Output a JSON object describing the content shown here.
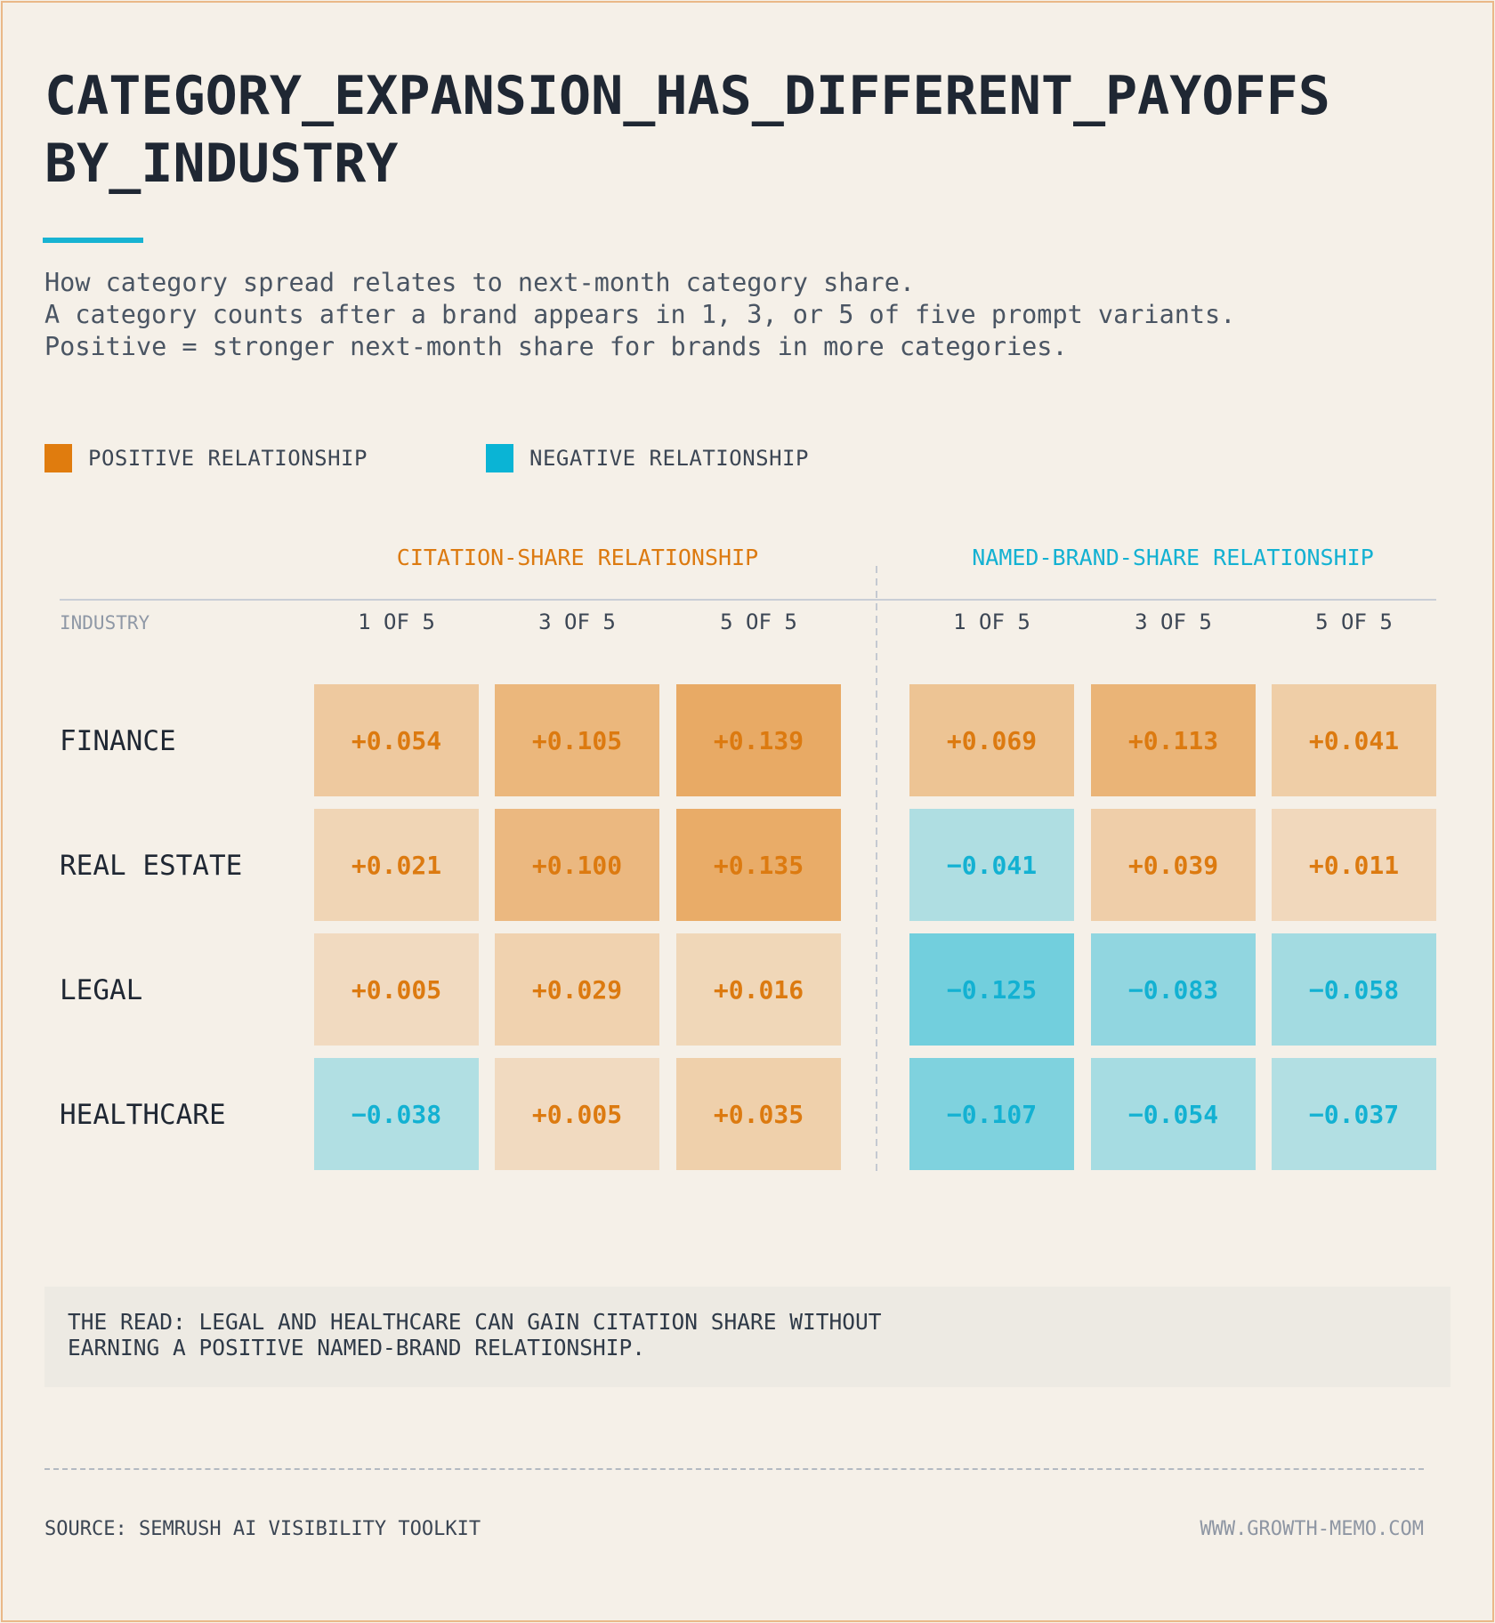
{
  "title_line1": "CATEGORY_EXPANSION_HAS_DIFFERENT_PAYOFFS",
  "title_line2": "BY_INDUSTRY",
  "subtitle": [
    "How category spread relates to next-month category share.",
    "A category counts after a brand appears in 1, 3, or 5 of five prompt variants.",
    "Positive = stronger next-month share for brands in more categories."
  ],
  "legend": {
    "positive": "POSITIVE RELATIONSHIP",
    "negative": "NEGATIVE RELATIONSHIP"
  },
  "colors": {
    "positive": "#e07c0e",
    "negative": "#0ab4d5",
    "positive_text": "#dc7a10",
    "negative_text": "#13b1d2",
    "accent": "#17b3d2",
    "title": "#1f2733"
  },
  "chart_data": {
    "type": "heatmap",
    "row_header": "INDUSTRY",
    "rows": [
      "FINANCE",
      "REAL ESTATE",
      "LEGAL",
      "HEALTHCARE"
    ],
    "groups": [
      {
        "name": "CITATION-SHARE RELATIONSHIP",
        "columns": [
          "1 OF 5",
          "3 OF 5",
          "5 OF 5"
        ],
        "values": [
          [
            0.054,
            0.105,
            0.139
          ],
          [
            0.021,
            0.1,
            0.135
          ],
          [
            0.005,
            0.029,
            0.016
          ],
          [
            -0.038,
            0.005,
            0.035
          ]
        ]
      },
      {
        "name": "NAMED-BRAND-SHARE RELATIONSHIP",
        "columns": [
          "1 OF 5",
          "3 OF 5",
          "5 OF 5"
        ],
        "values": [
          [
            0.069,
            0.113,
            0.041
          ],
          [
            -0.041,
            0.039,
            0.011
          ],
          [
            -0.125,
            -0.083,
            -0.058
          ],
          [
            -0.107,
            -0.054,
            -0.037
          ]
        ]
      }
    ]
  },
  "read_label": [
    "THE READ: LEGAL AND HEALTHCARE CAN GAIN CITATION SHARE WITHOUT",
    "EARNING A POSITIVE NAMED-BRAND RELATIONSHIP."
  ],
  "source": "SOURCE: SEMRUSH AI VISIBILITY TOOLKIT",
  "website": "WWW.GROWTH-MEMO.COM"
}
